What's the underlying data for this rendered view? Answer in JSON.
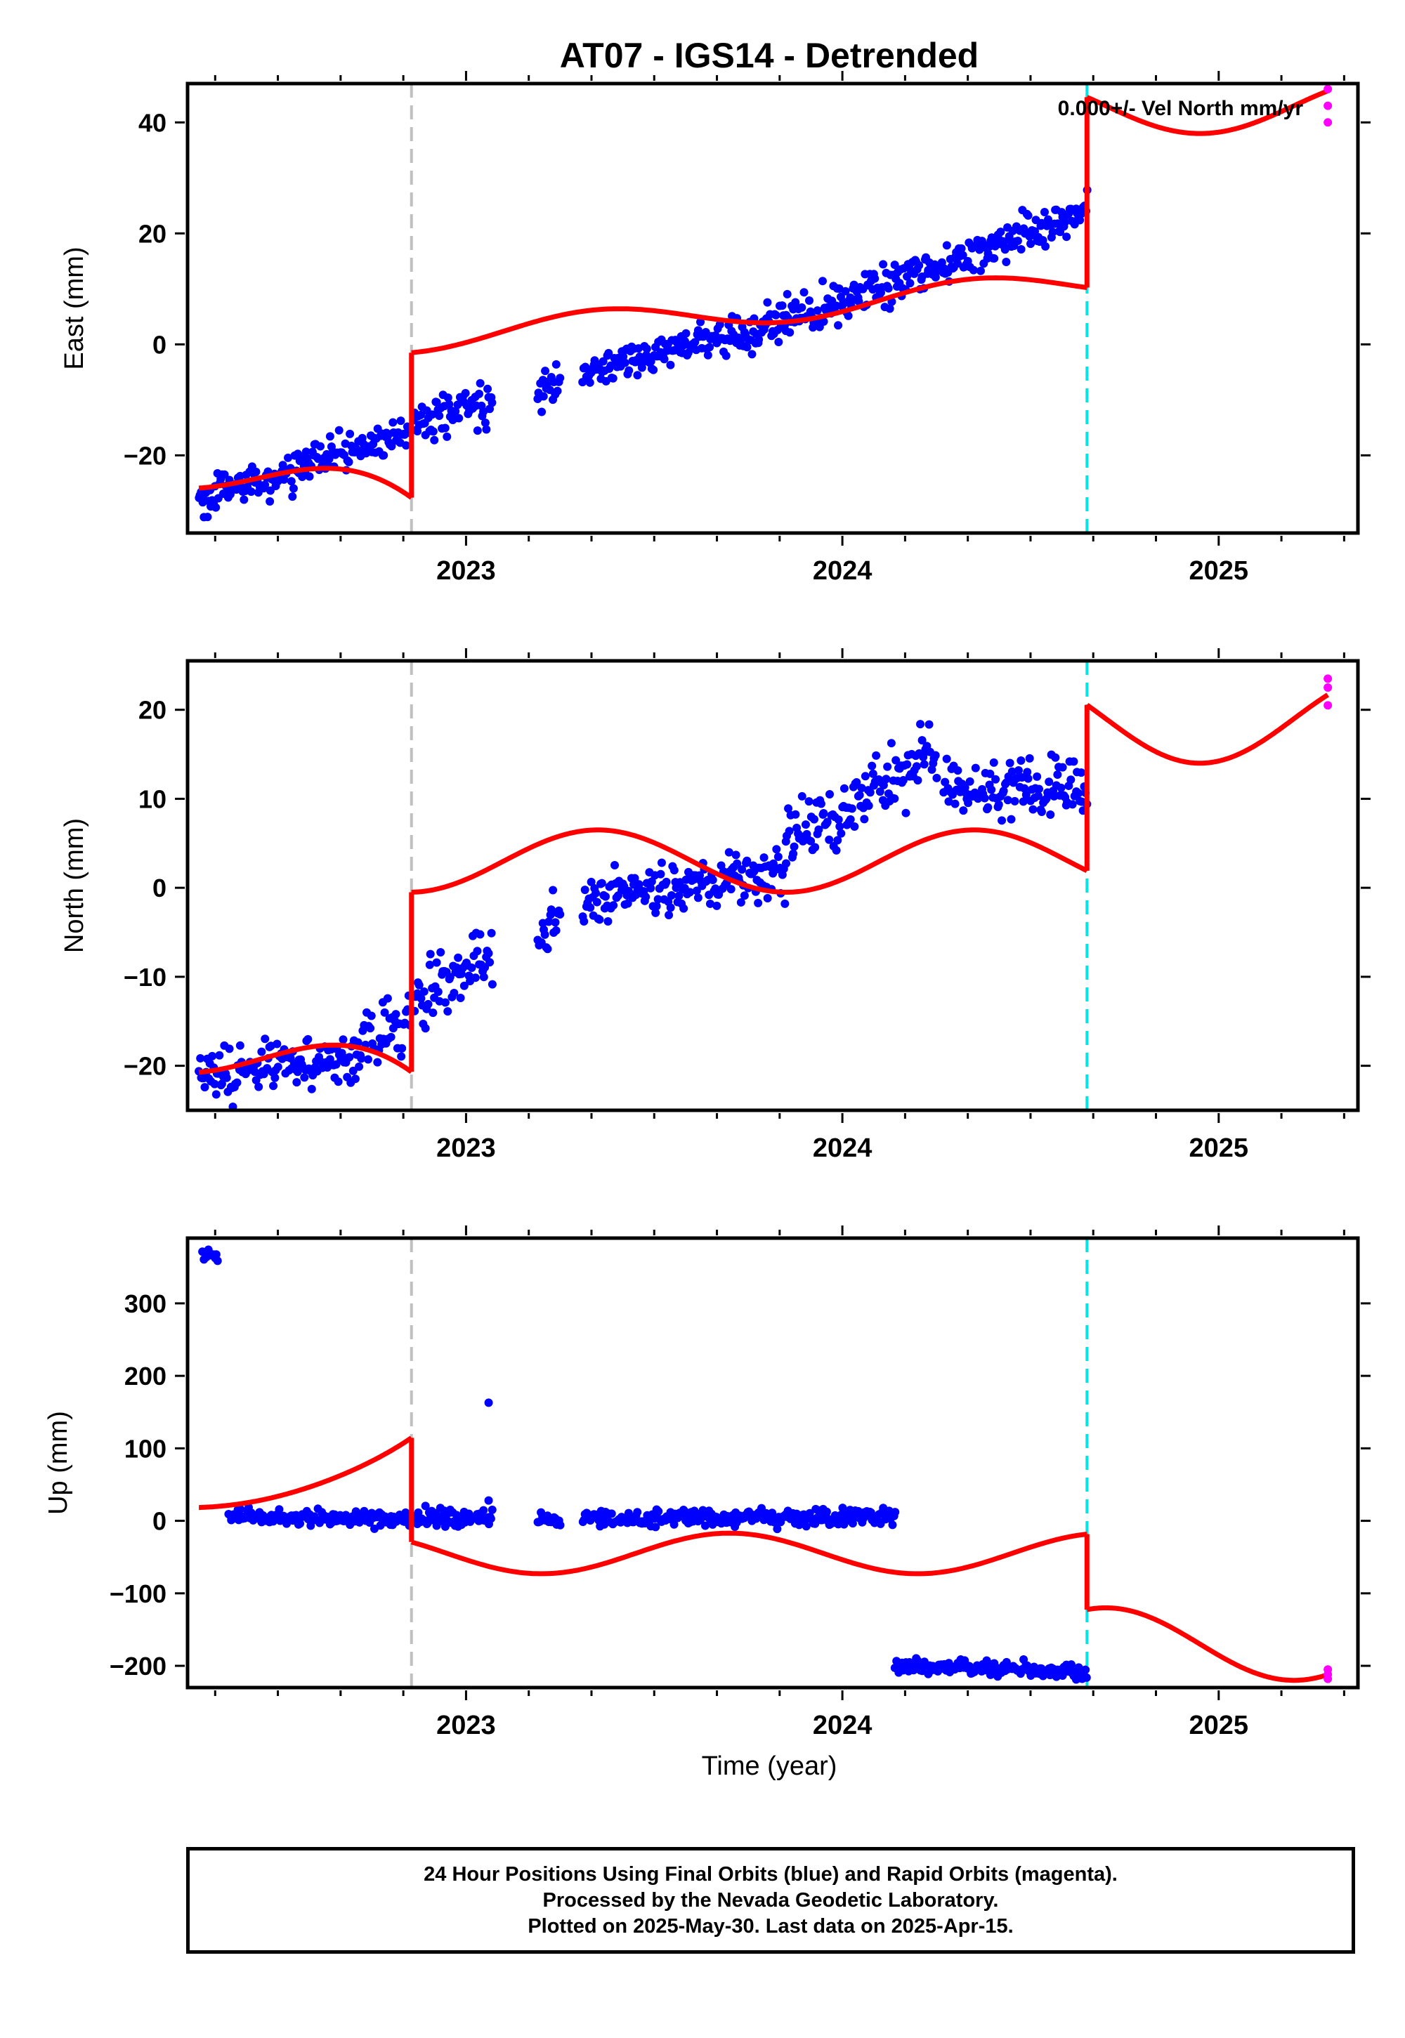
{
  "title": "AT07 - IGS14 - Detrended",
  "colors": {
    "final_orbits": "#0000ff",
    "rapid_orbits": "#ff00ff",
    "model": "#ff0000",
    "equipment_change": "#c0c0c0",
    "earthquake": "#00e5e5",
    "frame": "#000000"
  },
  "chart_data": [
    {
      "type": "scatter",
      "id": "east",
      "ylabel": "East (mm)",
      "xlabel": "",
      "xlim": [
        2022.26,
        2025.37
      ],
      "ylim": [
        -34,
        47
      ],
      "xticks_major": [
        2023,
        2024,
        2025
      ],
      "xtick_labels": [
        "2023",
        "2024",
        "2025"
      ],
      "yticks": [
        -20,
        0,
        20,
        40
      ],
      "ytick_labels": [
        "−20",
        "0",
        "20",
        "40"
      ],
      "annotation": "0.000+/- Vel North mm/yr",
      "vlines": [
        {
          "x": 2022.855,
          "style": "dashed",
          "color": "equipment_change"
        },
        {
          "x": 2024.65,
          "style": "dashed",
          "color": "earthquake"
        }
      ],
      "final_orbit_segments": [
        {
          "x0": 2022.29,
          "x1": 2022.85,
          "y0": -28,
          "y1": -16,
          "noise": 1.6
        },
        {
          "x0": 2022.86,
          "x1": 2023.07,
          "y0": -15,
          "y1": -10,
          "noise": 1.8
        },
        {
          "x0": 2023.19,
          "x1": 2023.25,
          "y0": -9,
          "y1": -6,
          "noise": 1.6
        },
        {
          "x0": 2023.31,
          "x1": 2023.85,
          "y0": -5,
          "y1": 4,
          "noise": 1.6
        },
        {
          "x0": 2023.85,
          "x1": 2024.65,
          "y0": 4,
          "y1": 24,
          "noise": 1.8
        }
      ],
      "rapid_orbit_points": [
        {
          "x": 2025.29,
          "y": 46
        },
        {
          "x": 2025.29,
          "y": 43
        },
        {
          "x": 2025.29,
          "y": 40
        }
      ],
      "model_segments": [
        {
          "x0": 2022.29,
          "x1": 2022.855,
          "base": [
            -23,
            -23
          ],
          "trend": 0,
          "amp": 3,
          "phase": 0.5,
          "ramp": [
            0,
            -7
          ]
        },
        {
          "x0": 2022.855,
          "x1": 2024.65,
          "base": [
            1,
            11
          ],
          "trend": 0,
          "amp": 2.5,
          "phase": 0.1,
          "ramp": [
            0,
            0
          ]
        },
        {
          "x0": 2024.65,
          "x1": 2025.29,
          "base": [
            43,
            43
          ],
          "trend": 0,
          "amp": 5,
          "phase": 0.2,
          "ramp": [
            0,
            0
          ]
        }
      ]
    },
    {
      "type": "scatter",
      "id": "north",
      "ylabel": "North (mm)",
      "xlabel": "",
      "xlim": [
        2022.26,
        2025.37
      ],
      "ylim": [
        -25,
        25.5
      ],
      "xticks_major": [
        2023,
        2024,
        2025
      ],
      "xtick_labels": [
        "2023",
        "2024",
        "2025"
      ],
      "yticks": [
        -20,
        -10,
        0,
        10,
        20
      ],
      "ytick_labels": [
        "−20",
        "−10",
        "0",
        "10",
        "20"
      ],
      "vlines": [
        {
          "x": 2022.855,
          "style": "dashed",
          "color": "equipment_change"
        },
        {
          "x": 2024.65,
          "style": "dashed",
          "color": "earthquake"
        }
      ],
      "final_orbit_segments": [
        {
          "x0": 2022.29,
          "x1": 2022.68,
          "y0": -21,
          "y1": -19,
          "noise": 1.4
        },
        {
          "x0": 2022.68,
          "x1": 2022.85,
          "y0": -19,
          "y1": -15,
          "noise": 1.8
        },
        {
          "x0": 2022.86,
          "x1": 2023.07,
          "y0": -13,
          "y1": -7,
          "noise": 1.8
        },
        {
          "x0": 2023.19,
          "x1": 2023.25,
          "y0": -6,
          "y1": -3,
          "noise": 1.5
        },
        {
          "x0": 2023.31,
          "x1": 2023.85,
          "y0": -2,
          "y1": 2,
          "noise": 1.5
        },
        {
          "x0": 2023.85,
          "x1": 2024.25,
          "y0": 5,
          "y1": 15,
          "noise": 1.6
        },
        {
          "x0": 2024.27,
          "x1": 2024.65,
          "y0": 11,
          "y1": 11,
          "noise": 1.6
        }
      ],
      "rapid_orbit_points": [
        {
          "x": 2025.29,
          "y": 23.5
        },
        {
          "x": 2025.29,
          "y": 22.5
        },
        {
          "x": 2025.29,
          "y": 20.5
        }
      ],
      "model_segments": [
        {
          "x0": 2022.29,
          "x1": 2022.855,
          "base": [
            -18.5,
            -18.5
          ],
          "trend": 0,
          "amp": 2.3,
          "phase": 0.5,
          "ramp": [
            0,
            -4
          ]
        },
        {
          "x0": 2022.855,
          "x1": 2024.65,
          "base": [
            3,
            3
          ],
          "trend": 0,
          "amp": 3.5,
          "phase": 0.1,
          "ramp": [
            0,
            0
          ]
        },
        {
          "x0": 2024.65,
          "x1": 2025.29,
          "base": [
            19,
            19
          ],
          "trend": 0,
          "amp": 5,
          "phase": 0.2,
          "ramp": [
            0,
            0
          ]
        }
      ]
    },
    {
      "type": "scatter",
      "id": "up",
      "ylabel": "Up (mm)",
      "xlabel": "Time (year)",
      "xlim": [
        2022.26,
        2025.37
      ],
      "ylim": [
        -230,
        390
      ],
      "xticks_major": [
        2023,
        2024,
        2025
      ],
      "xtick_labels": [
        "2023",
        "2024",
        "2025"
      ],
      "yticks": [
        -200,
        -100,
        0,
        100,
        200,
        300
      ],
      "ytick_labels": [
        "−200",
        "−100",
        "0",
        "100",
        "200",
        "300"
      ],
      "vlines": [
        {
          "x": 2022.855,
          "style": "dashed",
          "color": "equipment_change"
        },
        {
          "x": 2024.65,
          "style": "dashed",
          "color": "earthquake"
        }
      ],
      "final_orbit_segments": [
        {
          "x0": 2022.3,
          "x1": 2022.34,
          "y0": 370,
          "y1": 368,
          "noise": 4
        },
        {
          "x0": 2022.37,
          "x1": 2022.85,
          "y0": 5,
          "y1": 2,
          "noise": 5
        },
        {
          "x0": 2022.86,
          "x1": 2023.07,
          "y0": 3,
          "y1": 3,
          "noise": 6
        },
        {
          "x0": 2023.19,
          "x1": 2023.25,
          "y0": 2,
          "y1": 2,
          "noise": 5
        },
        {
          "x0": 2023.31,
          "x1": 2024.14,
          "y0": 3,
          "y1": 5,
          "noise": 6
        },
        {
          "x0": 2024.14,
          "x1": 2024.65,
          "y0": -200,
          "y1": -208,
          "noise": 5
        }
      ],
      "outliers": [
        {
          "x": 2023.06,
          "y": 163
        },
        {
          "x": 2023.06,
          "y": 28
        }
      ],
      "rapid_orbit_points": [
        {
          "x": 2025.29,
          "y": -205
        },
        {
          "x": 2025.29,
          "y": -212
        },
        {
          "x": 2025.29,
          "y": -218
        }
      ],
      "model_segments": [
        {
          "x0": 2022.29,
          "x1": 2022.855,
          "base": [
            30,
            30
          ],
          "trend": 0,
          "amp": 12,
          "phase": 0.5,
          "ramp": [
            0,
            75
          ]
        },
        {
          "x0": 2022.855,
          "x1": 2024.65,
          "base": [
            -45,
            -45
          ],
          "trend": 0,
          "amp": 28,
          "phase": 0.45,
          "ramp": [
            0,
            0
          ]
        },
        {
          "x0": 2024.65,
          "x1": 2025.29,
          "base": [
            -170,
            -170
          ],
          "trend": 0,
          "amp": 50,
          "phase": 0.45,
          "ramp": [
            0,
            0
          ]
        }
      ]
    }
  ],
  "footer": {
    "line1": "24 Hour Positions Using Final Orbits (blue) and Rapid Orbits (magenta).",
    "line2": "Processed by the Nevada Geodetic Laboratory.",
    "line3": "Plotted on 2025-May-30. Last data on 2025-Apr-15."
  }
}
